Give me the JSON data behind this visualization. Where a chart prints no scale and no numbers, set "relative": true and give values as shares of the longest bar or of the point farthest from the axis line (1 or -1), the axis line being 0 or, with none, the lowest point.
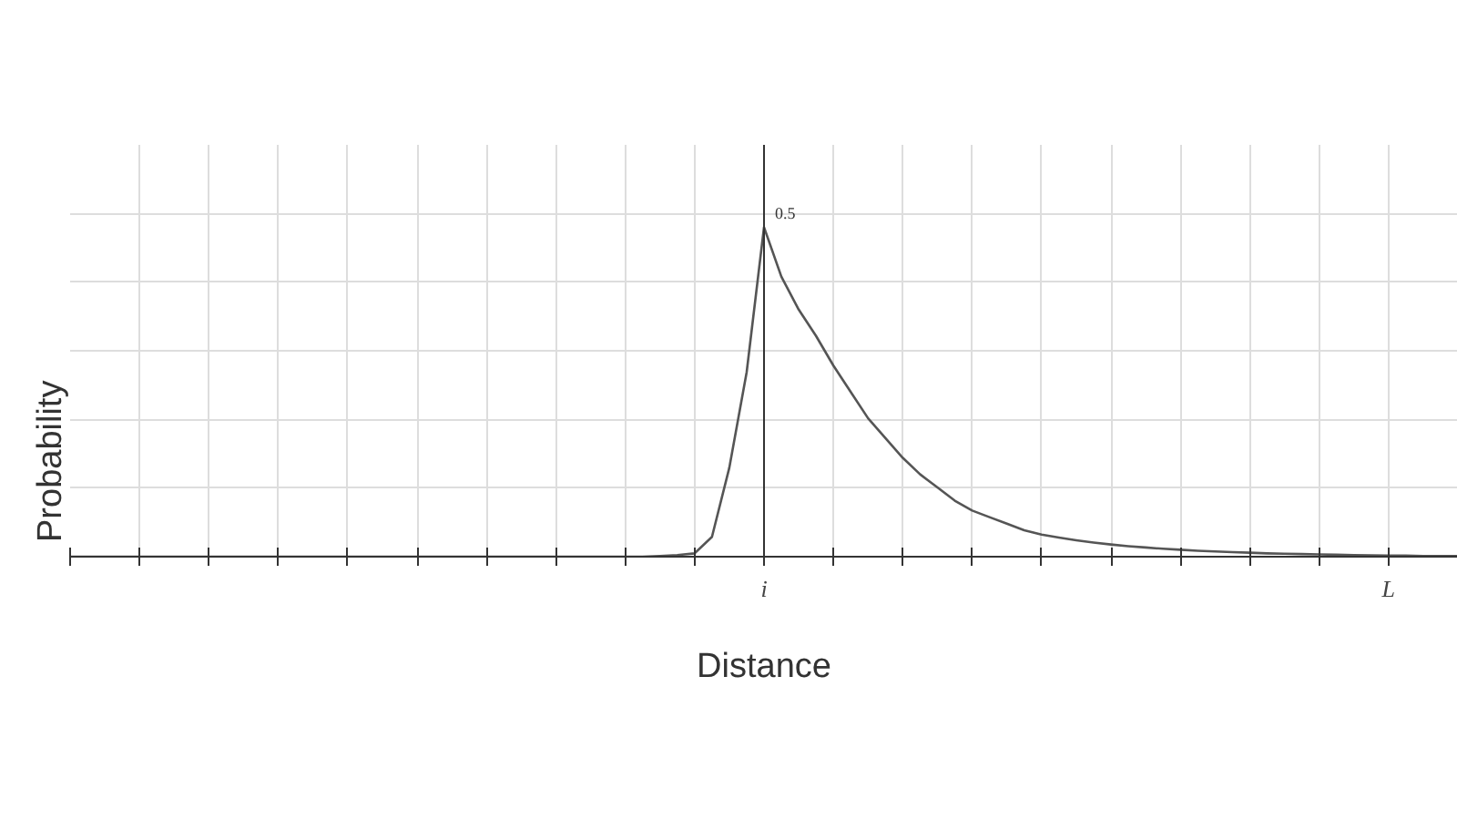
{
  "chart_data": {
    "type": "line",
    "xlabel": "Distance",
    "ylabel": "Probability",
    "relative": true,
    "categories": [
      null,
      null,
      null,
      null,
      null,
      null,
      null,
      null,
      null,
      null,
      null,
      null,
      null,
      null,
      null,
      null,
      null,
      null,
      null,
      null,
      null,
      null,
      null,
      null,
      null,
      null,
      null,
      null,
      null,
      null,
      null,
      null,
      null,
      null,
      null,
      null,
      null,
      null,
      null,
      null,
      "i",
      null,
      null,
      null,
      null,
      null,
      null,
      null,
      null,
      null,
      null,
      null,
      null,
      null,
      null,
      null,
      null,
      null,
      null,
      null,
      null,
      null,
      null,
      null,
      null,
      null,
      null,
      null,
      null,
      null,
      null,
      null,
      null,
      null,
      null,
      null,
      "L",
      null,
      null,
      null,
      null
    ],
    "series": [
      {
        "color": "#555555",
        "values": [
          0,
          0,
          0,
          0,
          0,
          0,
          0,
          0,
          0,
          0,
          0,
          0,
          0,
          0,
          0,
          0,
          0,
          0,
          0,
          0,
          0,
          0,
          0,
          0,
          0,
          0,
          0,
          0,
          0,
          0,
          0,
          0,
          0,
          0,
          0.002,
          0.005,
          0.01,
          0.06,
          0.27,
          0.56,
          1,
          0.85,
          0.75,
          0.67,
          0.58,
          0.5,
          0.42,
          0.36,
          0.3,
          0.25,
          0.21,
          0.17,
          0.14,
          0.12,
          0.1,
          0.08,
          0.067,
          0.058,
          0.05,
          0.043,
          0.037,
          0.032,
          0.028,
          0.024,
          0.021,
          0.018,
          0.016,
          0.014,
          0.012,
          0.01,
          0.009,
          0.008,
          0.007,
          0.006,
          0.005,
          0.004,
          0.003,
          0.003,
          0.002,
          0.002,
          0.002
        ]
      }
    ],
    "annotations": [
      "0.5"
    ],
    "grid": true,
    "marker": "none",
    "line_style": "solid"
  }
}
